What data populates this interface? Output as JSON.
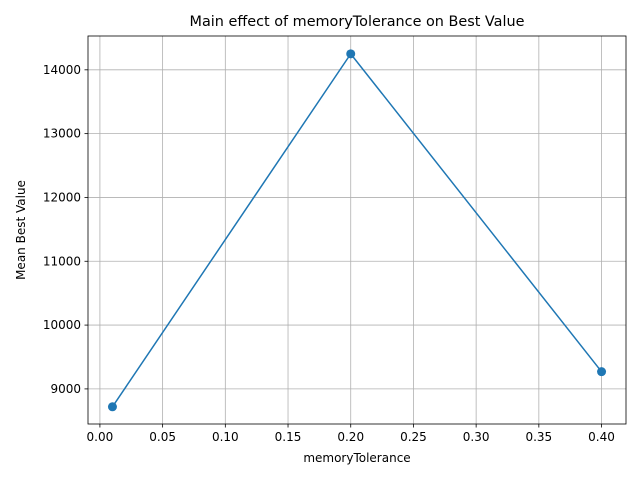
{
  "chart_data": {
    "type": "line",
    "title": "Main effect of memoryTolerance on Best Value",
    "xlabel": "memoryTolerance",
    "ylabel": "Mean Best Value",
    "xlim": [
      -0.0095,
      0.4195
    ],
    "ylim": [
      8450,
      14530
    ],
    "xticks": [
      0.0,
      0.05,
      0.1,
      0.15,
      0.2,
      0.25,
      0.3,
      0.35,
      0.4
    ],
    "xtick_labels": [
      "0.00",
      "0.05",
      "0.10",
      "0.15",
      "0.20",
      "0.25",
      "0.30",
      "0.35",
      "0.40"
    ],
    "yticks": [
      9000,
      10000,
      11000,
      12000,
      13000,
      14000
    ],
    "ytick_labels": [
      "9000",
      "10000",
      "11000",
      "12000",
      "13000",
      "14000"
    ],
    "grid": true,
    "color": "#1f77b4",
    "series": [
      {
        "x": [
          0.01,
          0.2,
          0.4
        ],
        "y": [
          8720,
          14250,
          9270
        ]
      }
    ]
  }
}
